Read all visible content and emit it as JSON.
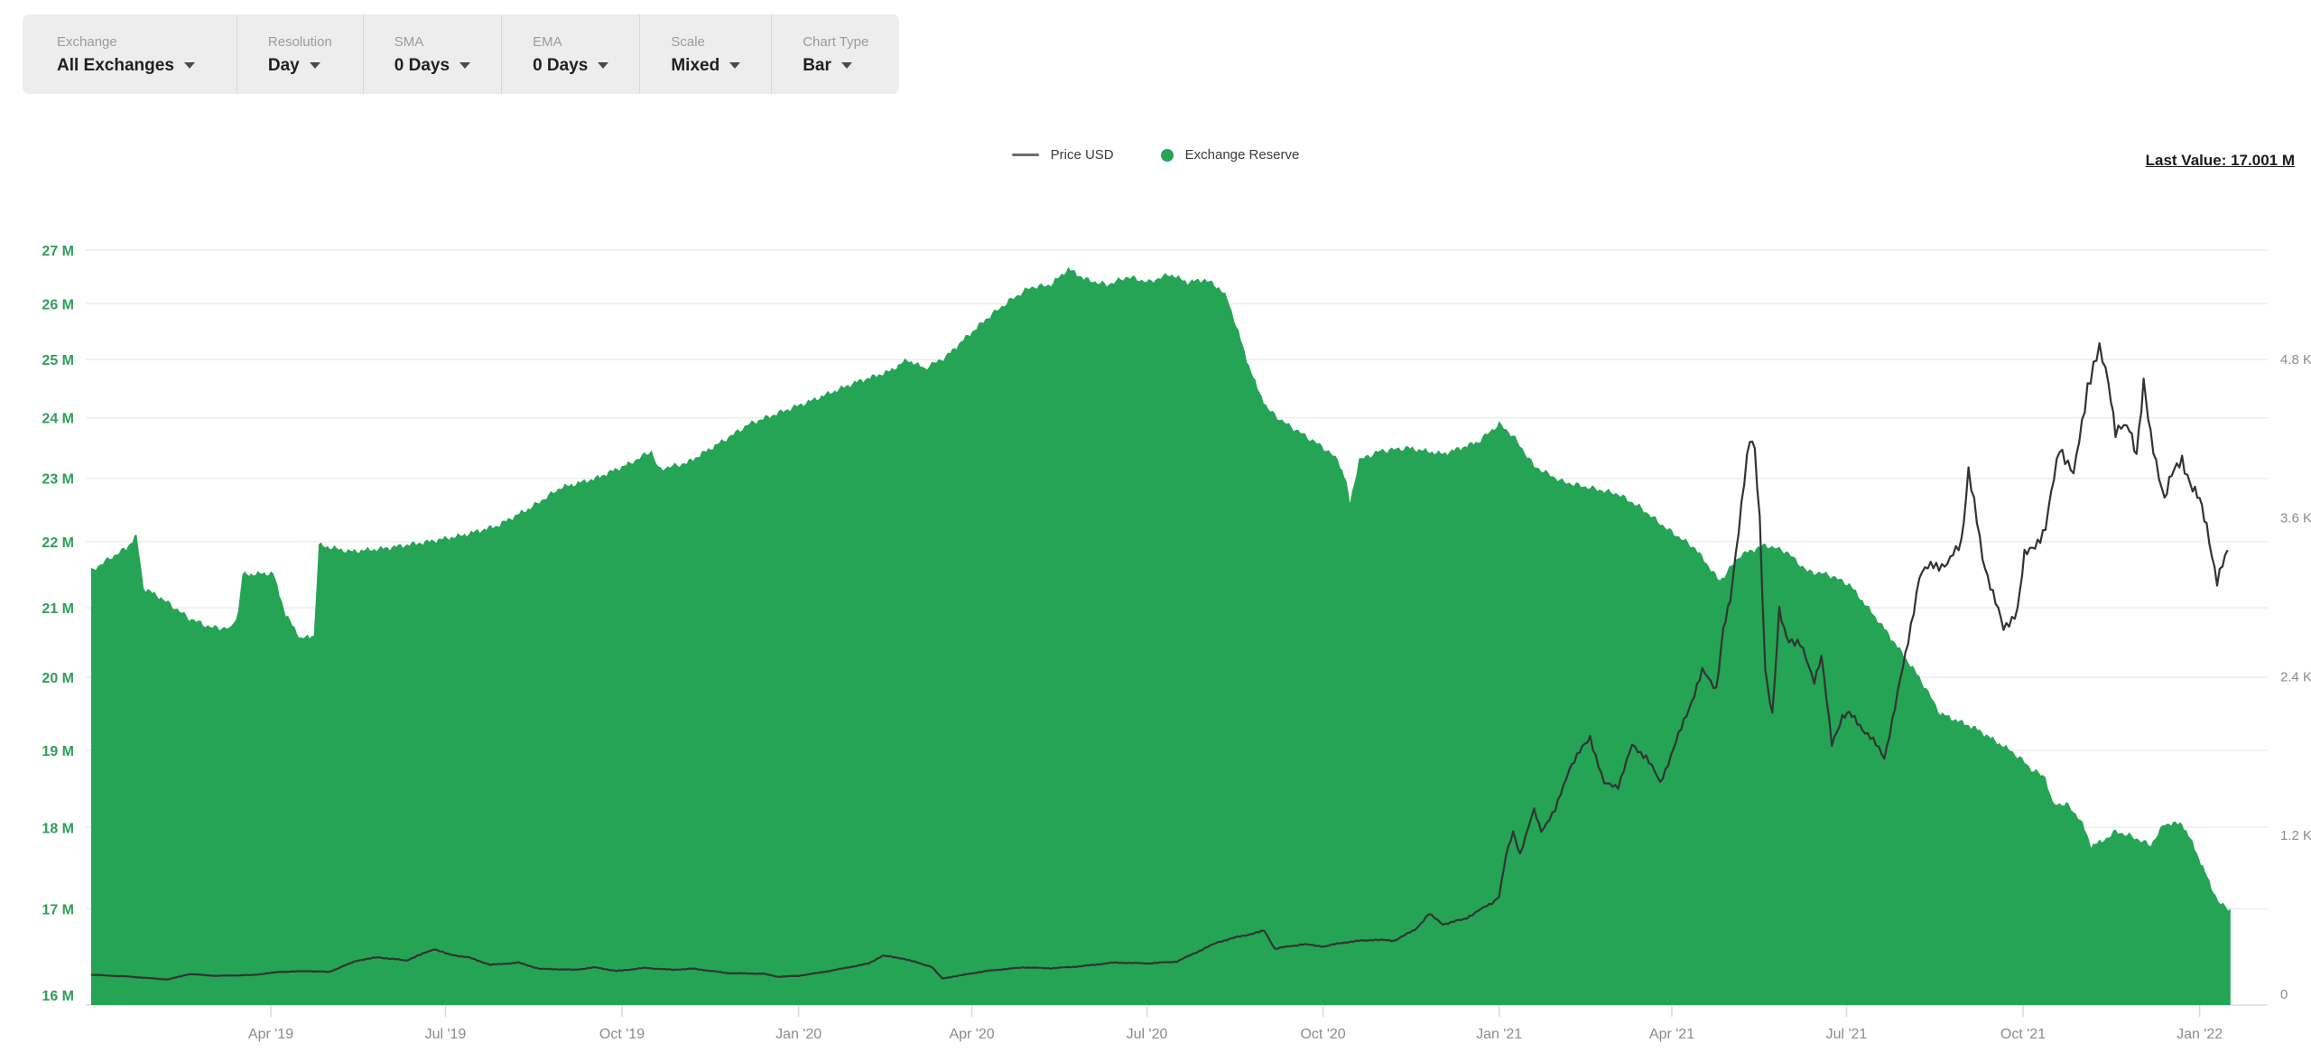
{
  "toolbar": {
    "controls": [
      {
        "label": "Exchange",
        "value": "All Exchanges"
      },
      {
        "label": "Resolution",
        "value": "Day"
      },
      {
        "label": "SMA",
        "value": "0 Days"
      },
      {
        "label": "EMA",
        "value": "0 Days"
      },
      {
        "label": "Scale",
        "value": "Mixed"
      },
      {
        "label": "Chart Type",
        "value": "Bar"
      }
    ]
  },
  "legend": {
    "items": [
      {
        "label": "Price USD",
        "swatch": "dark-line"
      },
      {
        "label": "Exchange Reserve",
        "swatch": "green-dot"
      }
    ]
  },
  "header": {
    "last_value_text": "Last Value: 17.001 M"
  },
  "colors": {
    "reserve_fill": "#24a454",
    "left_axis_text": "#2f9e58",
    "right_axis_text": "#8b8b8b",
    "x_axis_text": "#8b8b8b",
    "price_line": "#333333",
    "gridline": "#ededed",
    "baseline": "#dedede"
  },
  "chart_data": {
    "type": "bar",
    "title": "",
    "note": "Green area = Exchange Reserve (left log axis, millions of coins). Dark line = Price USD (right linear axis). t is decimal year.",
    "legend_position": "top-center",
    "grid": "horizontal-only",
    "last_value": "17.001 M",
    "x": {
      "domain": [
        2018.99,
        2022.044
      ],
      "ticks": [
        {
          "t": 2019.2466,
          "label": "Apr '19"
        },
        {
          "t": 2019.4959,
          "label": "Jul '19"
        },
        {
          "t": 2019.7479,
          "label": "Oct '19"
        },
        {
          "t": 2020.0,
          "label": "Jan '20"
        },
        {
          "t": 2020.2473,
          "label": "Apr '20"
        },
        {
          "t": 2020.4973,
          "label": "Jul '20"
        },
        {
          "t": 2020.7486,
          "label": "Oct '20"
        },
        {
          "t": 2021.0,
          "label": "Jan '21"
        },
        {
          "t": 2021.2466,
          "label": "Apr '21"
        },
        {
          "t": 2021.4959,
          "label": "Jul '21"
        },
        {
          "t": 2021.7479,
          "label": "Oct '21"
        },
        {
          "t": 2022.0,
          "label": "Jan '22"
        }
      ]
    },
    "y_left": {
      "scale": "log",
      "unit": "M",
      "ticks": [
        16,
        17,
        18,
        19,
        20,
        21,
        22,
        23,
        24,
        25,
        26,
        27
      ],
      "range": [
        16,
        27
      ]
    },
    "y_right": {
      "scale": "linear",
      "unit": "K",
      "ticks": [
        0,
        1200,
        2400,
        3600,
        4800
      ],
      "range": [
        0,
        5200
      ]
    },
    "series": [
      {
        "name": "Exchange Reserve",
        "axis": "left",
        "unit": "M",
        "style": "green-area-bars",
        "points": [
          [
            2018.99,
            21.55
          ],
          [
            2019.01,
            21.7
          ],
          [
            2019.04,
            21.9
          ],
          [
            2019.055,
            22.1
          ],
          [
            2019.065,
            21.3
          ],
          [
            2019.09,
            21.15
          ],
          [
            2019.13,
            20.85
          ],
          [
            2019.16,
            20.72
          ],
          [
            2019.19,
            20.7
          ],
          [
            2019.2,
            20.95
          ],
          [
            2019.206,
            21.5
          ],
          [
            2019.25,
            21.52
          ],
          [
            2019.268,
            20.9
          ],
          [
            2019.29,
            20.55
          ],
          [
            2019.308,
            20.6
          ],
          [
            2019.315,
            21.95
          ],
          [
            2019.36,
            21.85
          ],
          [
            2019.41,
            21.9
          ],
          [
            2019.47,
            22.0
          ],
          [
            2019.52,
            22.1
          ],
          [
            2019.57,
            22.25
          ],
          [
            2019.62,
            22.55
          ],
          [
            2019.66,
            22.85
          ],
          [
            2019.71,
            23.0
          ],
          [
            2019.76,
            23.25
          ],
          [
            2019.79,
            23.45
          ],
          [
            2019.8,
            23.15
          ],
          [
            2019.84,
            23.25
          ],
          [
            2019.89,
            23.6
          ],
          [
            2019.93,
            23.9
          ],
          [
            2020.02,
            24.3
          ],
          [
            2020.08,
            24.6
          ],
          [
            2020.13,
            24.8
          ],
          [
            2020.155,
            25.0
          ],
          [
            2020.18,
            24.85
          ],
          [
            2020.21,
            25.05
          ],
          [
            2020.235,
            25.35
          ],
          [
            2020.27,
            25.75
          ],
          [
            2020.3,
            26.05
          ],
          [
            2020.33,
            26.3
          ],
          [
            2020.36,
            26.35
          ],
          [
            2020.385,
            26.65
          ],
          [
            2020.41,
            26.45
          ],
          [
            2020.44,
            26.35
          ],
          [
            2020.47,
            26.5
          ],
          [
            2020.5,
            26.4
          ],
          [
            2020.53,
            26.55
          ],
          [
            2020.555,
            26.4
          ],
          [
            2020.58,
            26.45
          ],
          [
            2020.6,
            26.3
          ],
          [
            2020.612,
            26.1
          ],
          [
            2020.625,
            25.6
          ],
          [
            2020.64,
            25.0
          ],
          [
            2020.655,
            24.5
          ],
          [
            2020.67,
            24.15
          ],
          [
            2020.69,
            23.95
          ],
          [
            2020.71,
            23.8
          ],
          [
            2020.73,
            23.65
          ],
          [
            2020.75,
            23.5
          ],
          [
            2020.77,
            23.3
          ],
          [
            2020.782,
            22.95
          ],
          [
            2020.787,
            22.6
          ],
          [
            2020.8,
            23.3
          ],
          [
            2020.83,
            23.45
          ],
          [
            2020.87,
            23.5
          ],
          [
            2020.92,
            23.4
          ],
          [
            2020.97,
            23.6
          ],
          [
            2021.0,
            23.9
          ],
          [
            2021.02,
            23.7
          ],
          [
            2021.05,
            23.2
          ],
          [
            2021.09,
            22.95
          ],
          [
            2021.13,
            22.85
          ],
          [
            2021.17,
            22.75
          ],
          [
            2021.2,
            22.55
          ],
          [
            2021.24,
            22.2
          ],
          [
            2021.28,
            21.9
          ],
          [
            2021.315,
            21.4
          ],
          [
            2021.345,
            21.8
          ],
          [
            2021.38,
            21.95
          ],
          [
            2021.41,
            21.85
          ],
          [
            2021.44,
            21.55
          ],
          [
            2021.47,
            21.5
          ],
          [
            2021.5,
            21.35
          ],
          [
            2021.55,
            20.7
          ],
          [
            2021.6,
            20.0
          ],
          [
            2021.63,
            19.5
          ],
          [
            2021.68,
            19.3
          ],
          [
            2021.73,
            19.0
          ],
          [
            2021.75,
            18.85
          ],
          [
            2021.76,
            18.75
          ],
          [
            2021.78,
            18.65
          ],
          [
            2021.79,
            18.3
          ],
          [
            2021.81,
            18.3
          ],
          [
            2021.83,
            18.1
          ],
          [
            2021.845,
            17.78
          ],
          [
            2021.86,
            17.82
          ],
          [
            2021.88,
            17.95
          ],
          [
            2021.9,
            17.9
          ],
          [
            2021.93,
            17.78
          ],
          [
            2021.95,
            18.05
          ],
          [
            2021.975,
            18.05
          ],
          [
            2021.99,
            17.8
          ],
          [
            2022.005,
            17.5
          ],
          [
            2022.02,
            17.2
          ],
          [
            2022.03,
            17.05
          ],
          [
            2022.044,
            17.0
          ]
        ]
      },
      {
        "name": "Price USD",
        "axis": "right",
        "unit": "USD",
        "style": "dark-line",
        "points": [
          [
            2018.99,
            140
          ],
          [
            2019.04,
            128
          ],
          [
            2019.08,
            112
          ],
          [
            2019.1,
            105
          ],
          [
            2019.13,
            145
          ],
          [
            2019.17,
            132
          ],
          [
            2019.22,
            138
          ],
          [
            2019.26,
            162
          ],
          [
            2019.3,
            168
          ],
          [
            2019.33,
            162
          ],
          [
            2019.37,
            248
          ],
          [
            2019.4,
            272
          ],
          [
            2019.44,
            248
          ],
          [
            2019.48,
            335
          ],
          [
            2019.5,
            295
          ],
          [
            2019.53,
            270
          ],
          [
            2019.56,
            215
          ],
          [
            2019.6,
            232
          ],
          [
            2019.63,
            185
          ],
          [
            2019.68,
            178
          ],
          [
            2019.71,
            196
          ],
          [
            2019.74,
            168
          ],
          [
            2019.78,
            192
          ],
          [
            2019.82,
            178
          ],
          [
            2019.85,
            186
          ],
          [
            2019.9,
            152
          ],
          [
            2019.95,
            148
          ],
          [
            2019.97,
            125
          ],
          [
            2020.0,
            132
          ],
          [
            2020.04,
            165
          ],
          [
            2020.1,
            225
          ],
          [
            2020.12,
            285
          ],
          [
            2020.15,
            262
          ],
          [
            2020.19,
            200
          ],
          [
            2020.205,
            112
          ],
          [
            2020.23,
            135
          ],
          [
            2020.27,
            170
          ],
          [
            2020.32,
            196
          ],
          [
            2020.36,
            189
          ],
          [
            2020.4,
            203
          ],
          [
            2020.45,
            232
          ],
          [
            2020.5,
            226
          ],
          [
            2020.54,
            240
          ],
          [
            2020.58,
            340
          ],
          [
            2020.6,
            390
          ],
          [
            2020.63,
            430
          ],
          [
            2020.665,
            472
          ],
          [
            2020.68,
            337
          ],
          [
            2020.72,
            371
          ],
          [
            2020.75,
            354
          ],
          [
            2020.78,
            386
          ],
          [
            2020.82,
            405
          ],
          [
            2020.85,
            398
          ],
          [
            2020.88,
            480
          ],
          [
            2020.9,
            600
          ],
          [
            2020.92,
            522
          ],
          [
            2020.95,
            560
          ],
          [
            2020.99,
            684
          ],
          [
            2021.0,
            735
          ],
          [
            2021.01,
            1040
          ],
          [
            2021.02,
            1220
          ],
          [
            2021.03,
            1055
          ],
          [
            2021.05,
            1385
          ],
          [
            2021.06,
            1230
          ],
          [
            2021.08,
            1380
          ],
          [
            2021.1,
            1700
          ],
          [
            2021.13,
            1940
          ],
          [
            2021.15,
            1580
          ],
          [
            2021.17,
            1570
          ],
          [
            2021.19,
            1870
          ],
          [
            2021.21,
            1790
          ],
          [
            2021.23,
            1590
          ],
          [
            2021.26,
            2000
          ],
          [
            2021.29,
            2430
          ],
          [
            2021.31,
            2310
          ],
          [
            2021.32,
            2750
          ],
          [
            2021.33,
            2950
          ],
          [
            2021.35,
            3900
          ],
          [
            2021.358,
            4180
          ],
          [
            2021.365,
            4080
          ],
          [
            2021.372,
            3580
          ],
          [
            2021.38,
            2450
          ],
          [
            2021.39,
            2100
          ],
          [
            2021.4,
            2880
          ],
          [
            2021.41,
            2700
          ],
          [
            2021.43,
            2630
          ],
          [
            2021.45,
            2370
          ],
          [
            2021.46,
            2550
          ],
          [
            2021.475,
            1880
          ],
          [
            2021.49,
            2100
          ],
          [
            2021.5,
            2110
          ],
          [
            2021.53,
            1940
          ],
          [
            2021.55,
            1780
          ],
          [
            2021.58,
            2550
          ],
          [
            2021.6,
            3150
          ],
          [
            2021.62,
            3250
          ],
          [
            2021.64,
            3230
          ],
          [
            2021.66,
            3430
          ],
          [
            2021.67,
            3950
          ],
          [
            2021.69,
            3300
          ],
          [
            2021.72,
            2750
          ],
          [
            2021.74,
            2900
          ],
          [
            2021.75,
            3300
          ],
          [
            2021.78,
            3500
          ],
          [
            2021.8,
            4150
          ],
          [
            2021.82,
            3900
          ],
          [
            2021.84,
            4600
          ],
          [
            2021.857,
            4850
          ],
          [
            2021.87,
            4650
          ],
          [
            2021.88,
            4250
          ],
          [
            2021.9,
            4270
          ],
          [
            2021.91,
            4100
          ],
          [
            2021.92,
            4600
          ],
          [
            2021.93,
            4200
          ],
          [
            2021.95,
            3750
          ],
          [
            2021.96,
            3900
          ],
          [
            2021.975,
            4050
          ],
          [
            2021.99,
            3800
          ],
          [
            2022.0,
            3720
          ],
          [
            2022.01,
            3550
          ],
          [
            2022.025,
            3100
          ],
          [
            2022.04,
            3350
          ]
        ]
      }
    ]
  }
}
